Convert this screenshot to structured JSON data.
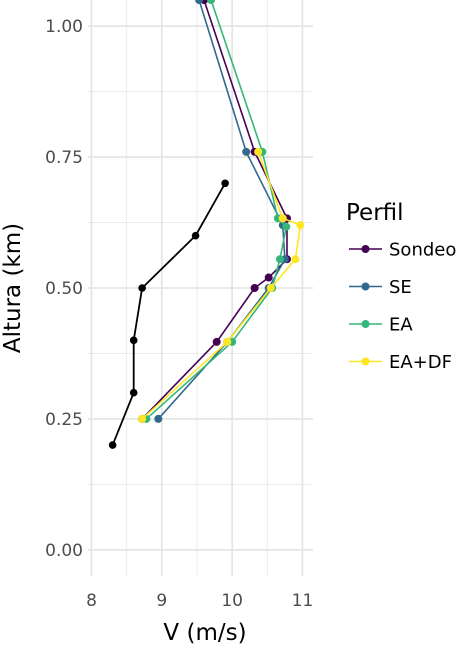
{
  "chart_data": {
    "type": "line",
    "title": "",
    "xlabel": "V (m/s)",
    "ylabel": "Altura (km)",
    "xlim": [
      7.95,
      11.15
    ],
    "ylim": [
      -0.05,
      1.05
    ],
    "xticks": [
      8,
      9,
      10,
      11
    ],
    "xtick_labels": [
      "8",
      "9",
      "10",
      "11"
    ],
    "yticks": [
      0.0,
      0.25,
      0.5,
      0.75,
      1.0
    ],
    "ytick_labels": [
      "0.00",
      "0.25",
      "0.50",
      "0.75",
      "1.00"
    ],
    "grid": true,
    "legend": {
      "title": "Perfil",
      "position": "right",
      "entries": [
        "Sondeo",
        "SE",
        "EA",
        "EA+DF"
      ]
    },
    "reference": {
      "color": "#000000",
      "points": [
        {
          "x": 8.3,
          "y": 0.2
        },
        {
          "x": 8.6,
          "y": 0.3
        },
        {
          "x": 8.6,
          "y": 0.4
        },
        {
          "x": 8.72,
          "y": 0.5
        },
        {
          "x": 9.48,
          "y": 0.6
        },
        {
          "x": 9.9,
          "y": 0.7
        }
      ]
    },
    "series": [
      {
        "name": "Sondeo",
        "color": "#440154",
        "points": [
          {
            "x": 8.72,
            "y": 0.25
          },
          {
            "x": 9.78,
            "y": 0.397
          },
          {
            "x": 10.32,
            "y": 0.5
          },
          {
            "x": 10.52,
            "y": 0.52
          },
          {
            "x": 10.78,
            "y": 0.555
          },
          {
            "x": 10.78,
            "y": 0.633
          },
          {
            "x": 10.32,
            "y": 0.76
          },
          {
            "x": 9.6,
            "y": 1.05
          }
        ]
      },
      {
        "name": "SE",
        "color": "#31688e",
        "points": [
          {
            "x": 8.95,
            "y": 0.25
          },
          {
            "x": 9.93,
            "y": 0.397
          },
          {
            "x": 10.52,
            "y": 0.5
          },
          {
            "x": 10.75,
            "y": 0.555
          },
          {
            "x": 10.72,
            "y": 0.62
          },
          {
            "x": 10.2,
            "y": 0.76
          },
          {
            "x": 9.53,
            "y": 1.05
          }
        ]
      },
      {
        "name": "EA",
        "color": "#35b779",
        "points": [
          {
            "x": 8.78,
            "y": 0.25
          },
          {
            "x": 10.0,
            "y": 0.397
          },
          {
            "x": 10.57,
            "y": 0.5
          },
          {
            "x": 10.68,
            "y": 0.555
          },
          {
            "x": 10.77,
            "y": 0.617
          },
          {
            "x": 10.65,
            "y": 0.633
          },
          {
            "x": 10.43,
            "y": 0.76
          },
          {
            "x": 9.7,
            "y": 1.05
          }
        ]
      },
      {
        "name": "EA+DF",
        "color": "#fde725",
        "points": [
          {
            "x": 8.72,
            "y": 0.25
          },
          {
            "x": 9.93,
            "y": 0.397
          },
          {
            "x": 10.55,
            "y": 0.5
          },
          {
            "x": 10.9,
            "y": 0.555
          },
          {
            "x": 10.97,
            "y": 0.62
          },
          {
            "x": 10.72,
            "y": 0.633
          },
          {
            "x": 10.37,
            "y": 0.76
          }
        ]
      }
    ]
  }
}
